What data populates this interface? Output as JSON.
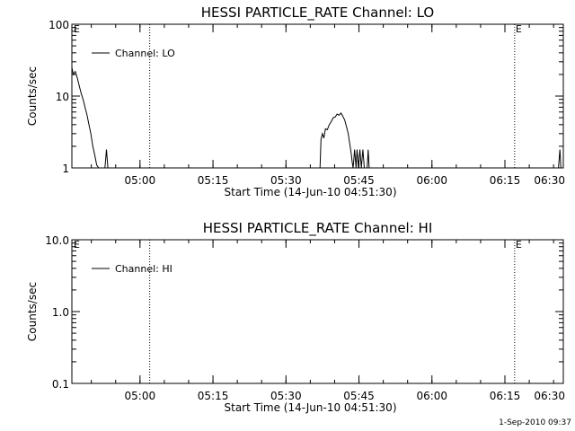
{
  "footer": {
    "timestamp": "1-Sep-2010 09:37"
  },
  "chart_data": [
    {
      "type": "line",
      "title": "HESSI PARTICLE_RATE Channel: LO",
      "xlabel": "Start Time (14-Jun-10 04:51:30)",
      "ylabel": "Counts/sec",
      "yscale": "log",
      "ylim": [
        1,
        100
      ],
      "ytick_values": [
        1,
        10,
        100
      ],
      "ytick_labels": [
        "1",
        "10",
        "100"
      ],
      "xlim_minutes": [
        -5.5,
        95.5
      ],
      "xtick_minutes": [
        8.5,
        23.5,
        38.5,
        53.5,
        68.5,
        83.5,
        98.5
      ],
      "xtick_labels": [
        "05:00",
        "05:15",
        "05:30",
        "05:45",
        "06:00",
        "06:15",
        "06:30"
      ],
      "grid": false,
      "legend": {
        "position": "top-left",
        "entries": [
          "Channel: LO"
        ]
      },
      "vlines": [
        {
          "minute": 10.5,
          "label": ""
        },
        {
          "minute": 85.5,
          "label": "E"
        },
        {
          "minute": 95.5,
          "label": ""
        }
      ],
      "corner_label": "E",
      "series": [
        {
          "name": "Channel: LO",
          "segments": [
            [
              [
                -5.5,
                25
              ],
              [
                -5.2,
                20
              ],
              [
                -4.8,
                22
              ],
              [
                -4.4,
                18
              ],
              [
                -4.0,
                14
              ],
              [
                -3.6,
                11
              ],
              [
                -3.2,
                9
              ],
              [
                -2.8,
                7
              ],
              [
                -2.4,
                5.5
              ],
              [
                -2.0,
                4
              ],
              [
                -1.6,
                3
              ],
              [
                -1.2,
                2
              ],
              [
                -0.8,
                1.5
              ],
              [
                -0.4,
                1.1
              ],
              [
                0.0,
                1.0
              ]
            ],
            [
              [
                1.3,
                1.0
              ],
              [
                1.6,
                1.8
              ],
              [
                1.9,
                1.0
              ]
            ],
            [
              [
                45.5,
                1.0
              ],
              [
                45.7,
                2.5
              ],
              [
                46.0,
                3.0
              ],
              [
                46.3,
                2.6
              ],
              [
                46.6,
                3.5
              ],
              [
                47.0,
                3.4
              ],
              [
                47.4,
                4.0
              ],
              [
                47.8,
                4.4
              ],
              [
                48.2,
                5.0
              ],
              [
                48.6,
                5.1
              ],
              [
                49.0,
                5.6
              ],
              [
                49.4,
                5.4
              ],
              [
                49.8,
                5.8
              ],
              [
                50.2,
                5.2
              ],
              [
                50.6,
                4.6
              ],
              [
                51.0,
                3.6
              ],
              [
                51.3,
                3.0
              ],
              [
                51.6,
                2.2
              ],
              [
                51.9,
                1.6
              ],
              [
                52.1,
                1.2
              ],
              [
                52.3,
                1.0
              ],
              [
                52.6,
                1.8
              ],
              [
                52.9,
                1.0
              ],
              [
                53.1,
                1.8
              ],
              [
                53.4,
                1.0
              ],
              [
                53.7,
                1.8
              ],
              [
                54.0,
                1.0
              ],
              [
                54.3,
                1.8
              ],
              [
                54.6,
                1.0
              ]
            ],
            [
              [
                55.2,
                1.0
              ],
              [
                55.4,
                1.8
              ],
              [
                55.6,
                1.0
              ]
            ],
            [
              [
                94.5,
                1.0
              ],
              [
                94.8,
                1.8
              ],
              [
                95.0,
                1.0
              ]
            ]
          ]
        }
      ]
    },
    {
      "type": "line",
      "title": "HESSI PARTICLE_RATE Channel: HI",
      "xlabel": "Start Time (14-Jun-10 04:51:30)",
      "ylabel": "Counts/sec",
      "yscale": "log",
      "ylim": [
        0.1,
        10
      ],
      "ytick_values": [
        0.1,
        1,
        10
      ],
      "ytick_labels": [
        "0.1",
        "1.0",
        "10.0"
      ],
      "xlim_minutes": [
        -5.5,
        95.5
      ],
      "xtick_minutes": [
        8.5,
        23.5,
        38.5,
        53.5,
        68.5,
        83.5,
        98.5
      ],
      "xtick_labels": [
        "05:00",
        "05:15",
        "05:30",
        "05:45",
        "06:00",
        "06:15",
        "06:30"
      ],
      "grid": false,
      "legend": {
        "position": "top-left",
        "entries": [
          "Channel: HI"
        ]
      },
      "vlines": [
        {
          "minute": 10.5,
          "label": ""
        },
        {
          "minute": 85.5,
          "label": "E"
        },
        {
          "minute": 95.5,
          "label": ""
        }
      ],
      "corner_label": "E",
      "series": [
        {
          "name": "Channel: HI",
          "segments": []
        }
      ]
    }
  ]
}
